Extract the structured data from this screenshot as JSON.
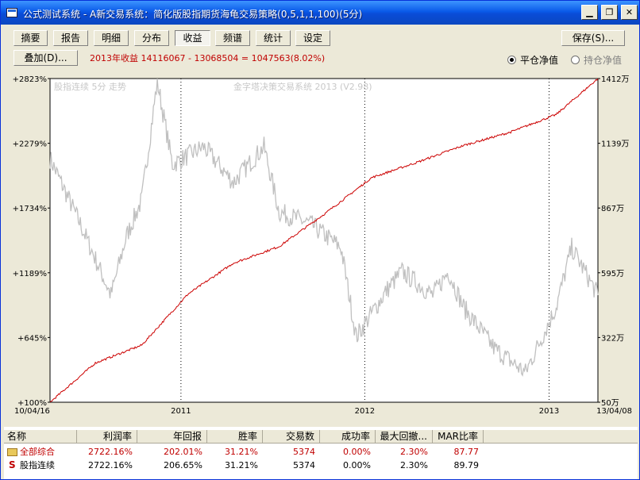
{
  "window": {
    "title": "公式测试系统 - A新交易系统：简化版股指期货海龟交易策略(0,5,1,1,100)(5分)",
    "minimize": "0",
    "restore": "1",
    "close": "r"
  },
  "tabs": [
    {
      "label": "摘要"
    },
    {
      "label": "报告"
    },
    {
      "label": "明细"
    },
    {
      "label": "分布"
    },
    {
      "label": "收益",
      "active": true
    },
    {
      "label": "频谱"
    },
    {
      "label": "统计"
    },
    {
      "label": "设定"
    }
  ],
  "save_button": "保存(S)...",
  "overlay_button": "叠加(D)...",
  "profit_summary": "2013年收益 14116067 - 13068504 = 1047563(8.02%)",
  "radios": {
    "close_equity": {
      "label": "平仓净值",
      "selected": true
    },
    "hold_equity": {
      "label": "持仓净值",
      "selected": false
    }
  },
  "chart_data": {
    "type": "line",
    "watermark_left": "股指连续 5分 走势",
    "watermark_center": "金字塔决策交易系统 2013 (V2.98)",
    "y_left_ticks": [
      "+2823%",
      "+2279%",
      "+1734%",
      "+1189%",
      "+645%",
      "+100%"
    ],
    "y_right_ticks": [
      "1412万",
      "1139万",
      "867万",
      "595万",
      "322万",
      "50万"
    ],
    "x_ticks": [
      "10/04/16",
      "2011",
      "2012",
      "2013",
      "13/04/08"
    ],
    "ylim_left": [
      100,
      2823
    ],
    "ylim_right": [
      50,
      1412
    ],
    "grid": "dotted vertical at year boundaries",
    "series": [
      {
        "color": "#cc0000",
        "x": [
          "2010-04-16",
          "2010-07",
          "2010-10",
          "2011-01",
          "2011-04",
          "2011-07",
          "2011-10",
          "2012-01",
          "2012-04",
          "2012-07",
          "2012-10",
          "2013-01",
          "2013-04-08"
        ],
        "values": [
          100,
          430,
          580,
          1010,
          1270,
          1410,
          1690,
          1990,
          2120,
          2260,
          2370,
          2520,
          2823
        ]
      },
      {
        "color": "#c0c0c0",
        "x": [
          "2010-04-16",
          "2010-06",
          "2010-08",
          "2010-09",
          "2010-10",
          "2010-11",
          "2010-12",
          "2011-02",
          "2011-04",
          "2011-06",
          "2011-07",
          "2011-09",
          "2011-11",
          "2011-12",
          "2012-02",
          "2012-03",
          "2012-05",
          "2012-06",
          "2012-07",
          "2012-09",
          "2012-11",
          "2013-01",
          "2013-02",
          "2013-04-08"
        ],
        "values": [
          2150,
          1600,
          1000,
          1500,
          1800,
          2800,
          2100,
          2250,
          1950,
          2250,
          1700,
          1600,
          1400,
          650,
          1050,
          1200,
          1000,
          1200,
          900,
          550,
          350,
          900,
          1400,
          1000
        ]
      }
    ]
  },
  "table": {
    "columns": [
      "名称",
      "利润率",
      "年回报",
      "胜率",
      "交易数",
      "成功率",
      "最大回撤...",
      "MAR比率"
    ],
    "rows": [
      [
        "全部综合",
        "2722.16%",
        "202.01%",
        "31.21%",
        "5374",
        "0.00%",
        "2.30%",
        "87.77"
      ],
      [
        "股指连续",
        "2722.16%",
        "206.65%",
        "31.21%",
        "5374",
        "0.00%",
        "2.30%",
        "89.79"
      ]
    ]
  }
}
